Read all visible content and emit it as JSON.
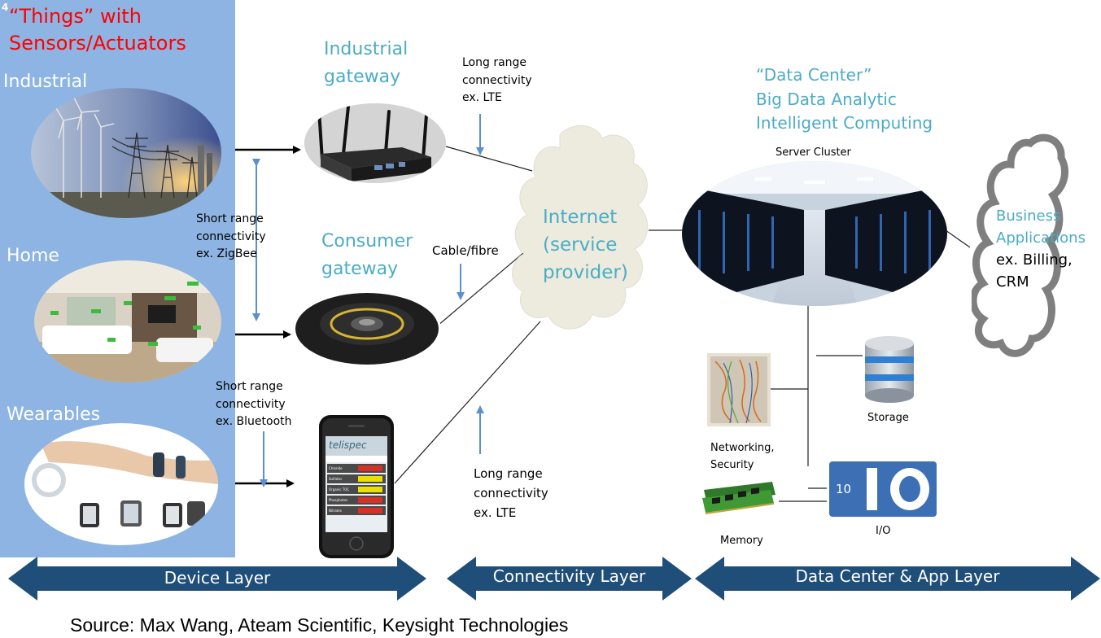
{
  "slide_number": "4",
  "things_title": [
    "“Things” with",
    "Sensors/Actuators"
  ],
  "categories": {
    "industrial": "Industrial",
    "home": "Home",
    "wearables": "Wearables"
  },
  "gateways": {
    "industrial": [
      "Industrial",
      "gateway"
    ],
    "consumer": [
      "Consumer",
      "gateway"
    ]
  },
  "connectivity_notes": {
    "long_range_top": [
      "Long range",
      "connectivity",
      "ex. LTE"
    ],
    "short_range_zigbee": [
      "Short range",
      "connectivity",
      "ex. ZigBee"
    ],
    "cable_fibre": "Cable/fibre",
    "short_range_bluetooth": [
      "Short range",
      "connectivity",
      "ex. Bluetooth"
    ],
    "long_range_bottom": [
      "Long range",
      "connectivity",
      "ex. LTE"
    ]
  },
  "internet_cloud": [
    "Internet",
    "(service",
    "provider)"
  ],
  "data_center_title": [
    "“Data Center”",
    "Big Data Analytic",
    "Intelligent Computing"
  ],
  "data_center_labels": {
    "server_cluster": "Server Cluster",
    "storage": "Storage",
    "networking": [
      "Networking,",
      "Security"
    ],
    "memory": "Memory",
    "io": "I/O",
    "io_icon_number": "10"
  },
  "business_apps": {
    "title": [
      "Business",
      "Applications"
    ],
    "examples": [
      "ex. Billing,",
      "CRM"
    ]
  },
  "phone_app": {
    "brand": "telispec",
    "rows": [
      "Chloride",
      "Sulfates",
      "Organic TOC",
      "Phosphates",
      "Nitrates"
    ]
  },
  "layers": {
    "device": "Device Layer",
    "connectivity": "Connectivity Layer",
    "data_center": "Data Center & App Layer"
  },
  "colors": {
    "panel": "#8db4e2",
    "title_blue": "#4bacc6",
    "things_red": "#ff0000",
    "arrow_blue": "#5b8fd0",
    "banner": "#1f4e79",
    "cloud": "#ecebde"
  },
  "source": "Source: Max Wang, Ateam Scientific, Keysight Technologies"
}
